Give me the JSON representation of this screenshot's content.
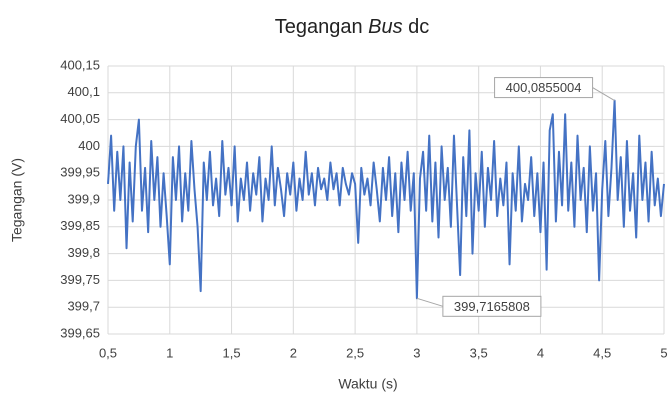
{
  "chart_data": {
    "type": "line",
    "title": [
      "Tegangan",
      "Bus",
      "dc"
    ],
    "x_label": "Waktu (s)",
    "y_label": "Tegangan (V)",
    "xlim": [
      0.5,
      5
    ],
    "ylim": [
      399.65,
      400.15
    ],
    "xticks": [
      {
        "value": 0.5,
        "label": "0,5"
      },
      1,
      {
        "value": 1.5,
        "label": "1,5"
      },
      2,
      {
        "value": 2.5,
        "label": "2,5"
      },
      3,
      {
        "value": 3.5,
        "label": "3,5"
      },
      4,
      {
        "value": 4.5,
        "label": "4,5"
      },
      5
    ],
    "yticks": [
      {
        "value": 399.65,
        "label": "399,65"
      },
      {
        "value": 399.7,
        "label": "399,7"
      },
      {
        "value": 399.75,
        "label": "399,75"
      },
      {
        "value": 399.8,
        "label": "399,8"
      },
      {
        "value": 399.85,
        "label": "399,85"
      },
      {
        "value": 399.9,
        "label": "399,9"
      },
      {
        "value": 399.95,
        "label": "399,95"
      },
      400,
      {
        "value": 400.05,
        "label": "400,05"
      },
      {
        "value": 400.1,
        "label": "400,1"
      },
      {
        "value": 400.15,
        "label": "400,15"
      }
    ],
    "grid": true,
    "x": [
      0.5,
      0.525,
      0.55,
      0.575,
      0.6,
      0.625,
      0.65,
      0.675,
      0.7,
      0.725,
      0.75,
      0.775,
      0.8,
      0.825,
      0.85,
      0.875,
      0.9,
      0.925,
      0.95,
      0.975,
      1,
      1.025,
      1.05,
      1.075,
      1.1,
      1.125,
      1.15,
      1.175,
      1.2,
      1.225,
      1.25,
      1.275,
      1.3,
      1.325,
      1.35,
      1.375,
      1.4,
      1.425,
      1.45,
      1.475,
      1.5,
      1.525,
      1.55,
      1.575,
      1.6,
      1.625,
      1.65,
      1.675,
      1.7,
      1.725,
      1.75,
      1.775,
      1.8,
      1.825,
      1.85,
      1.875,
      1.9,
      1.925,
      1.95,
      1.975,
      2,
      2.025,
      2.05,
      2.075,
      2.1,
      2.125,
      2.15,
      2.175,
      2.2,
      2.225,
      2.25,
      2.275,
      2.3,
      2.325,
      2.35,
      2.375,
      2.4,
      2.425,
      2.45,
      2.475,
      2.5,
      2.525,
      2.55,
      2.575,
      2.6,
      2.625,
      2.65,
      2.675,
      2.7,
      2.725,
      2.75,
      2.775,
      2.8,
      2.825,
      2.85,
      2.875,
      2.9,
      2.925,
      2.95,
      2.975,
      3,
      3.025,
      3.05,
      3.075,
      3.1,
      3.125,
      3.15,
      3.175,
      3.2,
      3.225,
      3.25,
      3.275,
      3.3,
      3.325,
      3.35,
      3.375,
      3.4,
      3.425,
      3.45,
      3.475,
      3.5,
      3.525,
      3.55,
      3.575,
      3.6,
      3.625,
      3.65,
      3.675,
      3.7,
      3.725,
      3.75,
      3.775,
      3.8,
      3.825,
      3.85,
      3.875,
      3.9,
      3.925,
      3.95,
      3.975,
      4,
      4.025,
      4.05,
      4.075,
      4.1,
      4.125,
      4.15,
      4.175,
      4.2,
      4.225,
      4.25,
      4.275,
      4.3,
      4.325,
      4.35,
      4.375,
      4.4,
      4.425,
      4.45,
      4.475,
      4.5,
      4.525,
      4.55,
      4.575,
      4.6,
      4.625,
      4.65,
      4.675,
      4.7,
      4.725,
      4.75,
      4.775,
      4.8,
      4.825,
      4.85,
      4.875,
      4.9,
      4.925,
      4.95,
      4.975,
      5
    ],
    "series": [
      {
        "color": "#4472c4",
        "values": [
          399.93,
          400.02,
          399.88,
          399.99,
          399.9,
          400.0,
          399.81,
          399.97,
          399.86,
          400.0,
          400.05,
          399.88,
          399.96,
          399.84,
          400.01,
          399.9,
          399.98,
          399.85,
          399.95,
          399.87,
          399.78,
          399.98,
          399.9,
          400.0,
          399.86,
          399.95,
          399.88,
          400.01,
          399.92,
          399.85,
          399.73,
          399.97,
          399.9,
          399.99,
          399.89,
          399.94,
          399.87,
          400.01,
          399.91,
          399.96,
          399.89,
          400.0,
          399.86,
          399.94,
          399.9,
          399.97,
          399.88,
          399.95,
          399.91,
          399.98,
          399.86,
          399.94,
          399.9,
          400.0,
          399.89,
          399.96,
          399.92,
          399.87,
          399.95,
          399.91,
          399.97,
          399.88,
          399.94,
          399.9,
          399.99,
          399.91,
          399.95,
          399.89,
          399.96,
          399.92,
          399.94,
          399.9,
          399.97,
          399.92,
          399.95,
          399.89,
          399.96,
          399.93,
          399.91,
          399.95,
          399.93,
          399.82,
          399.96,
          399.91,
          399.94,
          399.89,
          399.97,
          399.92,
          399.86,
          399.96,
          399.9,
          399.98,
          399.87,
          399.95,
          399.84,
          399.97,
          399.9,
          399.99,
          399.88,
          399.95,
          399.7165808,
          399.94,
          399.99,
          399.88,
          400.02,
          399.86,
          399.97,
          399.83,
          400.0,
          399.9,
          399.96,
          399.85,
          400.02,
          399.89,
          399.76,
          399.98,
          399.87,
          400.03,
          399.8,
          399.95,
          399.88,
          399.99,
          399.85,
          399.96,
          399.9,
          400.01,
          399.87,
          399.94,
          399.89,
          399.97,
          399.78,
          399.95,
          399.88,
          400.0,
          399.86,
          399.93,
          399.9,
          399.98,
          399.87,
          399.95,
          399.84,
          399.97,
          399.77,
          400.03,
          400.06,
          399.86,
          399.99,
          399.89,
          400.06,
          399.88,
          399.97,
          399.85,
          400.02,
          399.9,
          399.96,
          399.84,
          400.0,
          399.88,
          399.95,
          399.75,
          399.92,
          400.01,
          399.87,
          399.96,
          400.0855004,
          399.9,
          399.98,
          399.85,
          400.01,
          399.88,
          399.95,
          399.83,
          400.02,
          399.9,
          399.97,
          399.86,
          399.99,
          399.89,
          399.94,
          399.87,
          399.93
        ]
      }
    ],
    "annotations": [
      {
        "x": 4.6,
        "y": 400.0855004,
        "label": "400,0855004",
        "side": "left"
      },
      {
        "x": 3,
        "y": 399.7165808,
        "label": "399,7165808",
        "side": "right"
      }
    ]
  }
}
